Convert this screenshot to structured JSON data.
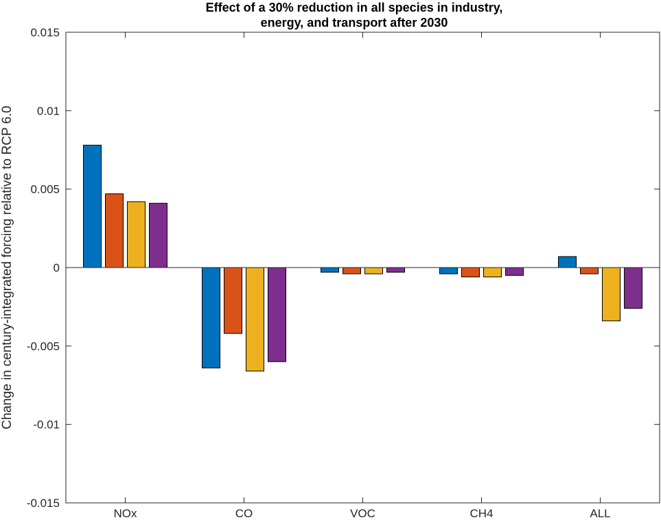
{
  "chart_data": {
    "type": "bar",
    "title_lines": [
      "Effect of a 30% reduction in all species in industry,",
      "energy, and transport after 2030"
    ],
    "xlabel": "",
    "ylabel": "Change in century-integrated forcing relative to RCP 6.0",
    "categories": [
      "NOx",
      "CO",
      "VOC",
      "CH4",
      "ALL"
    ],
    "ylim": [
      -0.015,
      0.015
    ],
    "yticks": [
      -0.015,
      -0.01,
      -0.005,
      0,
      0.005,
      0.01,
      0.015
    ],
    "ytick_labels": [
      "-0.015",
      "-0.01",
      "-0.005",
      "0",
      "0.005",
      "0.01",
      "0.015"
    ],
    "grid": false,
    "legend": "none",
    "series": [
      {
        "color": "#0072BD",
        "values": [
          0.0078,
          -0.0064,
          -0.0003,
          -0.0004,
          0.0007
        ]
      },
      {
        "color": "#D95319",
        "values": [
          0.0047,
          -0.0042,
          -0.0004,
          -0.0006,
          -0.0004
        ]
      },
      {
        "color": "#EDB120",
        "values": [
          0.0042,
          -0.0066,
          -0.0004,
          -0.0006,
          -0.0034
        ]
      },
      {
        "color": "#7E2F8E",
        "values": [
          0.0041,
          -0.006,
          -0.0003,
          -0.0005,
          -0.0026
        ]
      }
    ]
  }
}
